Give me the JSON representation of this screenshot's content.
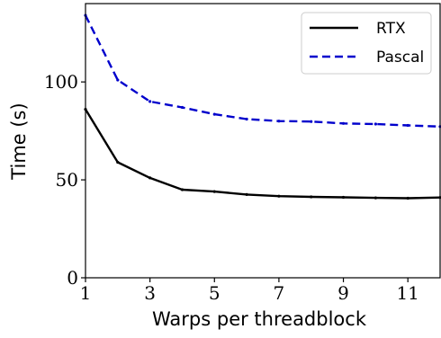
{
  "chart_data": {
    "type": "line",
    "xlabel": "Warps per threadblock",
    "ylabel": "Time (s)",
    "xlim": [
      1,
      12
    ],
    "ylim": [
      0,
      140
    ],
    "xticks": [
      1,
      3,
      5,
      7,
      9,
      11
    ],
    "yticks": [
      0,
      50,
      100
    ],
    "x": [
      1,
      2,
      3,
      4,
      5,
      6,
      7,
      8,
      9,
      10,
      11,
      12
    ],
    "series": [
      {
        "name": "RTX",
        "color": "#000000",
        "style": "solid",
        "values": [
          86,
          59,
          51,
          45,
          44,
          42.5,
          41.7,
          41.3,
          41.1,
          40.8,
          40.6,
          41
        ]
      },
      {
        "name": "Pascal",
        "color": "#0000cc",
        "style": "dashed",
        "values": [
          134,
          101,
          90,
          87,
          83.5,
          81,
          80,
          79.8,
          78.8,
          78.5,
          77.8,
          77.2
        ]
      }
    ],
    "legend": "top-right",
    "grid": false
  }
}
